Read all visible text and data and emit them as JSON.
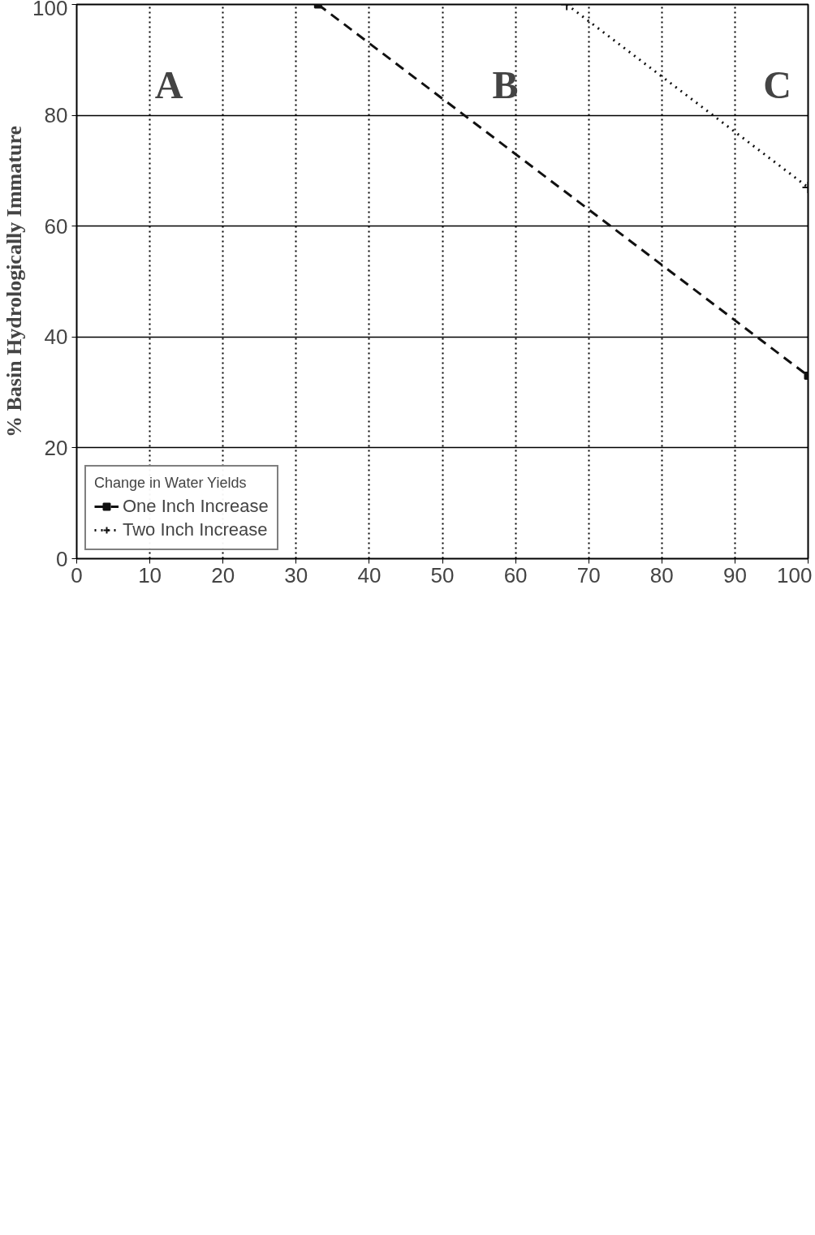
{
  "chart_data": {
    "type": "line",
    "ylabel": "% Basin Hydrologically Immature",
    "legend_title": "Change in Water Yields",
    "series": [
      {
        "name": "One Inch Increase",
        "color": "#111111",
        "x": [
          33,
          100
        ],
        "values": [
          100,
          33
        ],
        "line_style": "dashed",
        "marker": "square"
      },
      {
        "name": "Two Inch Increase",
        "color": "#111111",
        "x": [
          67,
          100
        ],
        "values": [
          100,
          67
        ],
        "line_style": "dotted",
        "marker": "cross"
      }
    ],
    "xlim": [
      0,
      100
    ],
    "ylim": [
      0,
      100
    ],
    "xticks": [
      0,
      10,
      20,
      30,
      40,
      50,
      60,
      70,
      80,
      90,
      100
    ],
    "yticks": [
      0,
      20,
      40,
      60,
      80,
      100
    ],
    "grid": true,
    "legend": "bottom left",
    "annotations": [
      "A",
      "B",
      "C"
    ]
  }
}
